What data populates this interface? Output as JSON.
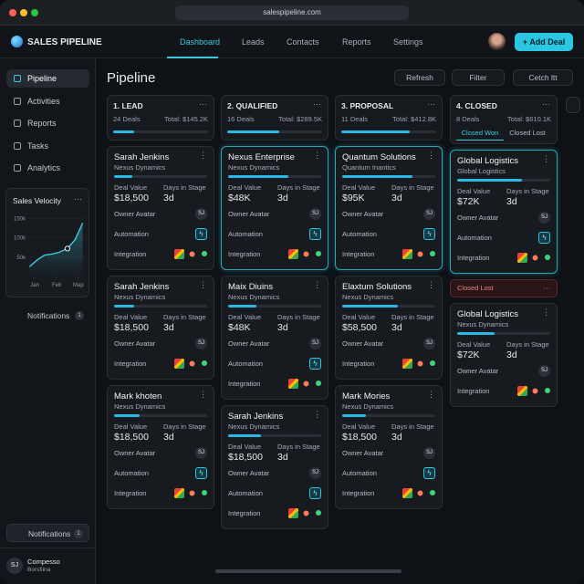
{
  "browser": {
    "url": "salespipeline.com"
  },
  "header": {
    "brand": "SALES PIPELINE",
    "nav": [
      "Dashboard",
      "Leads",
      "Contacts",
      "Reports",
      "Settings"
    ],
    "add_button": "Add Deal"
  },
  "sidebar": {
    "menu": [
      "Pipeline",
      "Activities",
      "Reports",
      "Tasks",
      "Analytics"
    ],
    "velocity": {
      "type": "line",
      "title": "Sales Velocity",
      "color": "#3ec8e0",
      "x": [
        -0.25,
        0.1,
        0.45,
        0.8,
        1.1,
        1.5,
        1.85,
        2.2
      ],
      "values": [
        25,
        42,
        55,
        58,
        62,
        72,
        95,
        138
      ],
      "highlight": 5,
      "xlim": [
        -0.3,
        2.3
      ],
      "xticks": [
        {
          "value": 0,
          "label": "Jan"
        },
        {
          "value": 1,
          "label": "Feb"
        },
        {
          "value": 2,
          "label": "Map"
        }
      ],
      "ylim": [
        0,
        160
      ],
      "yticks": [
        {
          "value": 150,
          "label": "150k"
        },
        {
          "value": 100,
          "label": "100k"
        },
        {
          "value": 50,
          "label": "50k"
        }
      ],
      "grid": true
    },
    "notifications": {
      "label": "Notifications",
      "count": 1
    },
    "bottom_notifications": {
      "label": "Notifications",
      "count": 1
    },
    "user": {
      "initials": "SJ",
      "name": "Compesso",
      "subtitle": "Borsfiina"
    }
  },
  "main": {
    "title": "Pipeline",
    "actions": [
      "Refresh",
      "Filter",
      "Cetch ltt"
    ]
  },
  "columns": [
    {
      "title": "1. LEAD",
      "deals": "24 Deals",
      "total": "Total: $145.2K",
      "progress": 22,
      "cards": [
        {
          "name": "Sarah Jenkins",
          "company": "Nexus Dynamics",
          "progress": 20,
          "deal_label": "Deal Value",
          "deal_value": "$18,500",
          "days_label": "Days in Stage",
          "days": "3d",
          "rows": [
            {
              "label": "Owner Avatar",
              "avatar": "SJ"
            },
            {
              "label": "Automation"
            },
            {
              "label": "Integration"
            }
          ]
        },
        {
          "name": "Sarah Jenkins",
          "company": "Nexus Dynamics",
          "progress": 22,
          "deal_label": "Deal Value",
          "deal_value": "$18,500",
          "days_label": "Days in Stage",
          "days": "3d",
          "rows": [
            {
              "label": "Owner Avatar",
              "avatar": "SJ"
            },
            {
              "label": "Integration"
            }
          ]
        },
        {
          "name": "Mark khoten",
          "company": "Nexus Dynamics",
          "progress": 27,
          "deal_label": "Deal Value",
          "deal_value": "$18,500",
          "days_label": "Days in Stage",
          "days": "3d",
          "rows": [
            {
              "label": "Owner Avatar",
              "avatar": "SJ"
            },
            {
              "label": "Automation"
            },
            {
              "label": "Integration"
            }
          ]
        }
      ]
    },
    {
      "title": "2. QUALIFIED",
      "deals": "16 Deals",
      "total": "Total: $289.5K",
      "progress": 55,
      "cards": [
        {
          "name": "Nexus Enterprise",
          "company": "Nexus Dynamics",
          "progress": 65,
          "active": true,
          "deal_label": "Deal Value",
          "deal_value": "$48K",
          "days_label": "Days in Stage",
          "days": "3d",
          "rows": [
            {
              "label": "Owner Avatar",
              "avatar": "SJ"
            },
            {
              "label": "Automation"
            },
            {
              "label": "Integration"
            }
          ]
        },
        {
          "name": "Maix Diuins",
          "company": "Nexus Dynamics",
          "progress": 30,
          "deal_label": "Deal Value",
          "deal_value": "$48K",
          "days_label": "Days in Stage",
          "days": "3d",
          "rows": [
            {
              "label": "Owner Avatar",
              "avatar": "SJ"
            },
            {
              "label": "Automation"
            },
            {
              "label": "Integration"
            }
          ]
        },
        {
          "name": "Sarah Jenkins",
          "company": "Nexus Dynamics",
          "progress": 35,
          "deal_label": "Deal Value",
          "deal_value": "$18,500",
          "days_label": "Days in Stage",
          "days": "3d",
          "rows": [
            {
              "label": "Owner Avatar",
              "avatar": "SJ"
            },
            {
              "label": "Automation"
            },
            {
              "label": "Integration"
            }
          ]
        }
      ]
    },
    {
      "title": "3. PROPOSAL",
      "deals": "11 Deals",
      "total": "Total: $412.8K",
      "progress": 72,
      "cards": [
        {
          "name": "Quantum Solutions",
          "company": "Quantum Inantics",
          "progress": 75,
          "active": true,
          "deal_label": "Deal Value",
          "deal_value": "$95K",
          "days_label": "Days in Stage",
          "days": "3d",
          "rows": [
            {
              "label": "Owner Avatar",
              "avatar": "SJ"
            },
            {
              "label": "Automation"
            },
            {
              "label": "Integration"
            }
          ]
        },
        {
          "name": "Elaxtum Solutions",
          "company": "Nexus Dynamics",
          "progress": 60,
          "deal_label": "Deal Value",
          "deal_value": "$58,500",
          "days_label": "Days in Stage",
          "days": "3d",
          "rows": [
            {
              "label": "Owner Avatar",
              "avatar": "SJ"
            },
            {
              "label": "Integration"
            }
          ]
        },
        {
          "name": "Mark Mories",
          "company": "Nexus Dynamics",
          "progress": 25,
          "deal_label": "Deal Value",
          "deal_value": "$18,500",
          "days_label": "Days in Stage",
          "days": "3d",
          "rows": [
            {
              "label": "Owner Avatar",
              "avatar": "SJ"
            },
            {
              "label": "Automation"
            },
            {
              "label": "Integration"
            }
          ]
        }
      ]
    },
    {
      "title": "4. CLOSED",
      "deals": "8 Deals",
      "total": "Total: $610.1K",
      "tabs": [
        "Closed Won",
        "Closed Lost"
      ],
      "cards": [
        {
          "name": "Global Logistics",
          "company": "Global Logistics",
          "progress": 70,
          "active": true,
          "deal_label": "Deal Value",
          "deal_value": "$72K",
          "days_label": "Days in Stage",
          "days": "3d",
          "rows": [
            {
              "label": "Owner Avatar",
              "avatar": "SJ"
            },
            {
              "label": "Automation"
            },
            {
              "label": "Integration"
            }
          ]
        }
      ],
      "lost_header": "Closed Lost",
      "lost_cards": [
        {
          "name": "Global Logistics",
          "company": "Nexus Dynamics",
          "progress": 40,
          "deal_label": "Deal Value",
          "deal_value": "$72K",
          "days_label": "Days in Stage",
          "days": "3d",
          "rows": [
            {
              "label": "Owner Avatar",
              "avatar": "SJ"
            },
            {
              "label": "Integration"
            }
          ]
        }
      ]
    }
  ]
}
